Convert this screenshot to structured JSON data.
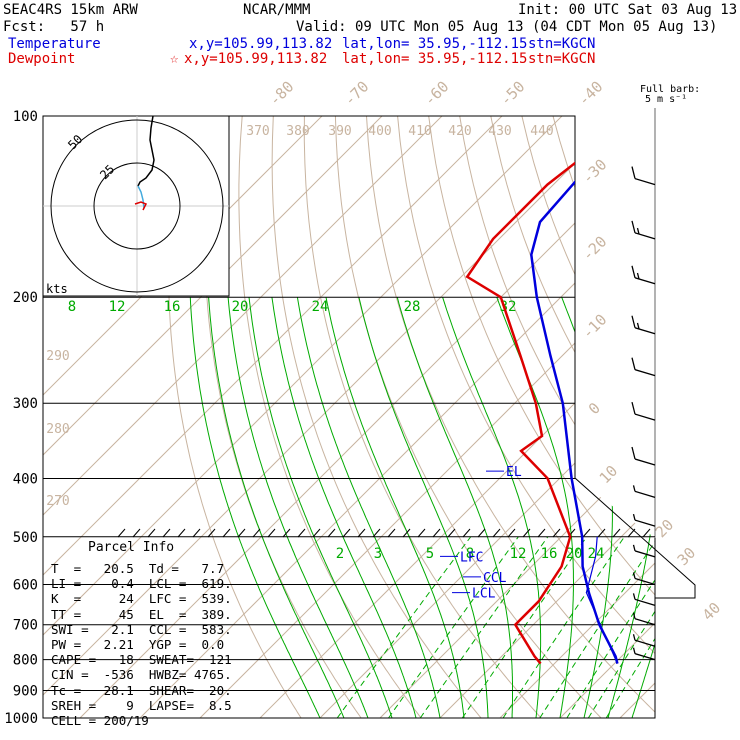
{
  "header": {
    "title_left": "SEAC4RS 15km ARW",
    "title_center": "NCAR/MMM",
    "init": "Init: 00 UTC Sat 03 Aug 13",
    "fcst": "Fcst:   57 h",
    "valid": "Valid: 09 UTC Mon 05 Aug 13 (04 CDT Mon 05 Aug 13)",
    "temp_label": "Temperature",
    "temp_xy": "x,y=105.99,113.82",
    "temp_latlon": "lat,lon= 35.95,-112.15",
    "temp_stn": "stn=KGCN",
    "dew_label": "Dewpoint",
    "dew_xy": "x,y=105.99,113.82",
    "dew_latlon": "lat,lon= 35.95,-112.15",
    "dew_stn": "stn=KGCN",
    "barb_title": "Full barb:",
    "barb_units": "5 m s⁻¹"
  },
  "parcel_info": {
    "title": "Parcel Info",
    "rows": [
      "T  =   20.5  Td =   7.7",
      "LI =   -0.4  LCL =  619.",
      "K  =     24  LFC =  539.",
      "TT =     45  EL  =  389.",
      "SWI =   2.1  CCL =  583.",
      "PW =   2.21  YGP =  0.0",
      "CAPE =   18  SWEAT=  121",
      "CIN =  -536  HWBZ= 4765.",
      "Tc =   28.1  SHEAR=  20.",
      "SREH =    9  LAPSE=  8.5",
      "CELL = 200/19"
    ]
  },
  "colors": {
    "temperature": "#0000dd",
    "dewpoint": "#dd0000",
    "isotherm": "#c8b4a0",
    "dry_adiabat": "#c8b4a0",
    "moist_adiabat": "#00aa00",
    "mixing_ratio": "#00aa00",
    "isobar": "#000000"
  },
  "chart_data": {
    "type": "skew-t",
    "pressure_levels": [
      100,
      200,
      300,
      400,
      500,
      600,
      700,
      800,
      900,
      1000
    ],
    "isotherm_labels": [
      "-80",
      "-70",
      "-60",
      "-50",
      "-40",
      "-30",
      "-20",
      "-10",
      "0",
      "10",
      "20",
      "30",
      "40"
    ],
    "theta_labels": [
      "370",
      "380",
      "390",
      "400",
      "410",
      "420",
      "430",
      "440",
      "290",
      "280",
      "270"
    ],
    "moist_labels_upper": [
      "8",
      "12",
      "16",
      "20",
      "24",
      "28",
      "32"
    ],
    "mixing_labels_lower": [
      "2",
      "3",
      "5",
      "8",
      "12",
      "16",
      "20",
      "24"
    ],
    "markers": [
      {
        "label": "EL",
        "pressure": 389
      },
      {
        "label": "LFC",
        "pressure": 539
      },
      {
        "label": "CCL",
        "pressure": 583
      },
      {
        "label": "LCL",
        "pressure": 619
      }
    ],
    "temperature": [
      {
        "p": 812,
        "t": 20.5
      },
      {
        "p": 790,
        "t": 19.0
      },
      {
        "p": 700,
        "t": 11.0
      },
      {
        "p": 620,
        "t": 4.0
      },
      {
        "p": 560,
        "t": -1.5
      },
      {
        "p": 500,
        "t": -6.5
      },
      {
        "p": 400,
        "t": -18.0
      },
      {
        "p": 300,
        "t": -32.0
      },
      {
        "p": 250,
        "t": -42.0
      },
      {
        "p": 200,
        "t": -54.0
      },
      {
        "p": 170,
        "t": -62.0
      },
      {
        "p": 150,
        "t": -66.0
      },
      {
        "p": 125,
        "t": -67.0
      },
      {
        "p": 110,
        "t": -65.0
      },
      {
        "p": 100,
        "t": -63.0
      }
    ],
    "dewpoint": [
      {
        "p": 812,
        "t": 7.7
      },
      {
        "p": 790,
        "t": 5.5
      },
      {
        "p": 700,
        "t": -3.0
      },
      {
        "p": 640,
        "t": -3.0
      },
      {
        "p": 560,
        "t": -5.0
      },
      {
        "p": 500,
        "t": -8.5
      },
      {
        "p": 400,
        "t": -22.0
      },
      {
        "p": 360,
        "t": -31.0
      },
      {
        "p": 340,
        "t": -30.0
      },
      {
        "p": 300,
        "t": -36.5
      },
      {
        "p": 250,
        "t": -47.0
      },
      {
        "p": 200,
        "t": -60.0
      },
      {
        "p": 185,
        "t": -69.0
      },
      {
        "p": 160,
        "t": -71.0
      },
      {
        "p": 130,
        "t": -71.0
      },
      {
        "p": 115,
        "t": -69.5
      },
      {
        "p": 100,
        "t": -68.0
      }
    ],
    "parcel_path": [
      {
        "p": 812,
        "t": 20.5
      },
      {
        "p": 619,
        "t": 3.5
      },
      {
        "p": 539,
        "t": -1.0
      },
      {
        "p": 500,
        "t": -4.0
      }
    ],
    "wind_barbs": [
      {
        "p": 130,
        "speed": 10
      },
      {
        "p": 160,
        "speed": 15
      },
      {
        "p": 190,
        "speed": 15
      },
      {
        "p": 230,
        "speed": 15
      },
      {
        "p": 270,
        "speed": 10
      },
      {
        "p": 320,
        "speed": 10
      },
      {
        "p": 380,
        "speed": 10
      },
      {
        "p": 430,
        "speed": 5
      },
      {
        "p": 480,
        "speed": 5
      },
      {
        "p": 540,
        "speed": 5
      },
      {
        "p": 600,
        "speed": 5
      },
      {
        "p": 650,
        "speed": 5
      },
      {
        "p": 700,
        "speed": 5
      },
      {
        "p": 760,
        "speed": 5
      },
      {
        "p": 800,
        "speed": 5
      }
    ],
    "hodograph": {
      "ring_labels": [
        "25",
        "50"
      ],
      "units": "kts"
    }
  }
}
